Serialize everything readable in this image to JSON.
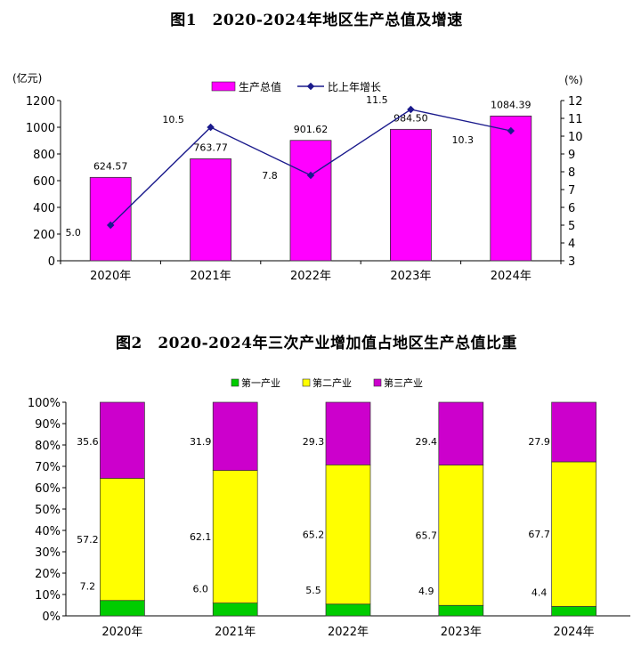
{
  "colors": {
    "gdp_bar": "#ff00ff",
    "growth_line": "#1a1a8c",
    "primary": "#00cc00",
    "secondary": "#ffff00",
    "tertiary": "#cc00cc",
    "axis": "#000000"
  },
  "chart_data": [
    {
      "type": "bar",
      "title": "图1　2020-2024年地区生产总值及增速",
      "categories": [
        "2020年",
        "2021年",
        "2022年",
        "2023年",
        "2024年"
      ],
      "series": [
        {
          "name": "生产总值",
          "kind": "bar",
          "axis": "left",
          "values": [
            624.57,
            763.77,
            901.62,
            984.5,
            1084.39
          ],
          "labels": [
            "624.57",
            "763.77",
            "901.62",
            "984.50",
            "1084.39"
          ]
        },
        {
          "name": "比上年增长",
          "kind": "line",
          "axis": "right",
          "values": [
            5.0,
            10.5,
            7.8,
            11.5,
            10.3
          ],
          "labels": [
            "5.0",
            "10.5",
            "7.8",
            "11.5",
            "10.3"
          ]
        }
      ],
      "ylabel_left": "(亿元)",
      "ylabel_right": "(%)",
      "ylim_left": [
        0,
        1200
      ],
      "yticks_left": [
        "0",
        "200",
        "400",
        "600",
        "800",
        "1000",
        "1200"
      ],
      "ylim_right": [
        3,
        12
      ],
      "yticks_right": [
        "3",
        "4",
        "5",
        "6",
        "7",
        "8",
        "9",
        "10",
        "11",
        "12"
      ],
      "legend": "top-center"
    },
    {
      "type": "bar",
      "stacked": true,
      "title": "图2　2020-2024年三次产业增加值占地区生产总值比重",
      "categories": [
        "2020年",
        "2021年",
        "2022年",
        "2023年",
        "2024年"
      ],
      "series": [
        {
          "name": "第一产业",
          "values": [
            7.2,
            6.0,
            5.5,
            4.9,
            4.4
          ],
          "labels": [
            "7.2",
            "6.0",
            "5.5",
            "4.9",
            "4.4"
          ]
        },
        {
          "name": "第二产业",
          "values": [
            57.2,
            62.1,
            65.2,
            65.7,
            67.7
          ],
          "labels": [
            "57.2",
            "62.1",
            "65.2",
            "65.7",
            "67.7"
          ]
        },
        {
          "name": "第三产业",
          "values": [
            35.6,
            31.9,
            29.3,
            29.4,
            27.9
          ],
          "labels": [
            "35.6",
            "31.9",
            "29.3",
            "29.4",
            "27.9"
          ]
        }
      ],
      "ylim": [
        0,
        100
      ],
      "yticks": [
        "0%",
        "10%",
        "20%",
        "30%",
        "40%",
        "50%",
        "60%",
        "70%",
        "80%",
        "90%",
        "100%"
      ],
      "legend": "top-center"
    }
  ]
}
